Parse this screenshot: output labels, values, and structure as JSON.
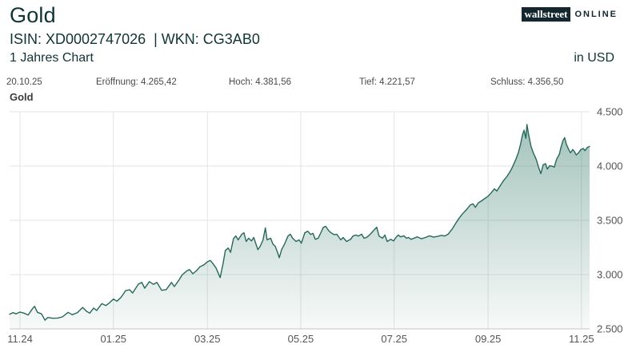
{
  "header": {
    "title": "Gold",
    "isin_wkn": "ISIN: XD0002747026  | WKN: CG3AB0",
    "period": "1 Jahres Chart",
    "currency": "in USD",
    "logo": {
      "part1": "wallstreet",
      "part2": "ONLINE"
    }
  },
  "stats": {
    "date": "20.10.25",
    "open": "Eröffnung: 4.265,42",
    "high": "Hoch: 4.381,56",
    "low": "Tief: 4.221,57",
    "close": "Schluss: 4.356,50"
  },
  "chart_label": "Gold",
  "colors": {
    "line": "#26685A",
    "fill": "#3F8070",
    "grid": "#e4e4e4",
    "axis": "#c6c6c6",
    "tick": "#555555",
    "text_dark": "#103433",
    "logo_bg": "#14262e"
  },
  "chart_data": {
    "type": "area",
    "title": "Gold",
    "xlabel": "",
    "ylabel": "",
    "legend": false,
    "grid": true,
    "ylim": [
      2500,
      4500
    ],
    "yticks": [
      {
        "value": 4500,
        "label": "4.500"
      },
      {
        "value": 4000,
        "label": "4.000"
      },
      {
        "value": 3500,
        "label": "3.500"
      },
      {
        "value": 3000,
        "label": "3.000"
      },
      {
        "value": 2500,
        "label": "2.500"
      }
    ],
    "xticks": [
      {
        "t": 0.018,
        "label": "11.24"
      },
      {
        "t": 0.179,
        "label": "01.25"
      },
      {
        "t": 0.341,
        "label": "03.25"
      },
      {
        "t": 0.502,
        "label": "05.25"
      },
      {
        "t": 0.663,
        "label": "07.25"
      },
      {
        "t": 0.825,
        "label": "09.25"
      },
      {
        "t": 0.986,
        "label": "11.25"
      }
    ],
    "series": [
      {
        "name": "Gold",
        "points": [
          [
            0.0,
            2635
          ],
          [
            0.006,
            2650
          ],
          [
            0.011,
            2638
          ],
          [
            0.018,
            2655
          ],
          [
            0.025,
            2645
          ],
          [
            0.032,
            2628
          ],
          [
            0.039,
            2682
          ],
          [
            0.043,
            2708
          ],
          [
            0.048,
            2652
          ],
          [
            0.055,
            2638
          ],
          [
            0.061,
            2580
          ],
          [
            0.066,
            2605
          ],
          [
            0.074,
            2598
          ],
          [
            0.083,
            2600
          ],
          [
            0.091,
            2610
          ],
          [
            0.101,
            2652
          ],
          [
            0.108,
            2630
          ],
          [
            0.117,
            2650
          ],
          [
            0.126,
            2698
          ],
          [
            0.132,
            2665
          ],
          [
            0.138,
            2645
          ],
          [
            0.145,
            2692
          ],
          [
            0.15,
            2670
          ],
          [
            0.159,
            2732
          ],
          [
            0.166,
            2715
          ],
          [
            0.172,
            2740
          ],
          [
            0.179,
            2775
          ],
          [
            0.185,
            2755
          ],
          [
            0.192,
            2790
          ],
          [
            0.2,
            2852
          ],
          [
            0.207,
            2860
          ],
          [
            0.212,
            2830
          ],
          [
            0.222,
            2912
          ],
          [
            0.228,
            2928
          ],
          [
            0.233,
            2875
          ],
          [
            0.241,
            2935
          ],
          [
            0.248,
            2910
          ],
          [
            0.254,
            2928
          ],
          [
            0.262,
            2855
          ],
          [
            0.27,
            2862
          ],
          [
            0.279,
            2928
          ],
          [
            0.284,
            2890
          ],
          [
            0.292,
            2950
          ],
          [
            0.298,
            3000
          ],
          [
            0.306,
            3035
          ],
          [
            0.31,
            3046
          ],
          [
            0.316,
            3008
          ],
          [
            0.323,
            3040
          ],
          [
            0.328,
            3072
          ],
          [
            0.335,
            3090
          ],
          [
            0.341,
            3118
          ],
          [
            0.346,
            3130
          ],
          [
            0.35,
            3105
          ],
          [
            0.356,
            3060
          ],
          [
            0.363,
            2972
          ],
          [
            0.368,
            3100
          ],
          [
            0.372,
            3222
          ],
          [
            0.377,
            3245
          ],
          [
            0.381,
            3205
          ],
          [
            0.386,
            3332
          ],
          [
            0.39,
            3356
          ],
          [
            0.394,
            3320
          ],
          [
            0.4,
            3370
          ],
          [
            0.404,
            3386
          ],
          [
            0.408,
            3305
          ],
          [
            0.412,
            3335
          ],
          [
            0.417,
            3310
          ],
          [
            0.421,
            3342
          ],
          [
            0.428,
            3230
          ],
          [
            0.432,
            3260
          ],
          [
            0.437,
            3320
          ],
          [
            0.441,
            3430
          ],
          [
            0.444,
            3320
          ],
          [
            0.45,
            3335
          ],
          [
            0.454,
            3280
          ],
          [
            0.458,
            3260
          ],
          [
            0.462,
            3205
          ],
          [
            0.465,
            3155
          ],
          [
            0.469,
            3230
          ],
          [
            0.474,
            3280
          ],
          [
            0.48,
            3355
          ],
          [
            0.484,
            3372
          ],
          [
            0.488,
            3335
          ],
          [
            0.494,
            3305
          ],
          [
            0.499,
            3320
          ],
          [
            0.503,
            3290
          ],
          [
            0.509,
            3385
          ],
          [
            0.514,
            3400
          ],
          [
            0.519,
            3370
          ],
          [
            0.523,
            3380
          ],
          [
            0.527,
            3325
          ],
          [
            0.532,
            3335
          ],
          [
            0.537,
            3390
          ],
          [
            0.541,
            3435
          ],
          [
            0.545,
            3445
          ],
          [
            0.55,
            3405
          ],
          [
            0.554,
            3385
          ],
          [
            0.56,
            3368
          ],
          [
            0.564,
            3372
          ],
          [
            0.571,
            3320
          ],
          [
            0.575,
            3342
          ],
          [
            0.581,
            3305
          ],
          [
            0.588,
            3325
          ],
          [
            0.592,
            3355
          ],
          [
            0.597,
            3365
          ],
          [
            0.601,
            3355
          ],
          [
            0.607,
            3372
          ],
          [
            0.611,
            3335
          ],
          [
            0.615,
            3342
          ],
          [
            0.619,
            3357
          ],
          [
            0.625,
            3390
          ],
          [
            0.629,
            3415
          ],
          [
            0.633,
            3437
          ],
          [
            0.637,
            3355
          ],
          [
            0.643,
            3335
          ],
          [
            0.647,
            3365
          ],
          [
            0.651,
            3305
          ],
          [
            0.657,
            3325
          ],
          [
            0.662,
            3310
          ],
          [
            0.666,
            3342
          ],
          [
            0.67,
            3365
          ],
          [
            0.674,
            3348
          ],
          [
            0.68,
            3357
          ],
          [
            0.684,
            3335
          ],
          [
            0.688,
            3342
          ],
          [
            0.692,
            3325
          ],
          [
            0.698,
            3337
          ],
          [
            0.703,
            3348
          ],
          [
            0.71,
            3330
          ],
          [
            0.717,
            3342
          ],
          [
            0.724,
            3357
          ],
          [
            0.731,
            3345
          ],
          [
            0.738,
            3352
          ],
          [
            0.745,
            3362
          ],
          [
            0.75,
            3355
          ],
          [
            0.756,
            3372
          ],
          [
            0.763,
            3420
          ],
          [
            0.77,
            3480
          ],
          [
            0.775,
            3520
          ],
          [
            0.781,
            3560
          ],
          [
            0.788,
            3600
          ],
          [
            0.794,
            3640
          ],
          [
            0.799,
            3652
          ],
          [
            0.803,
            3620
          ],
          [
            0.808,
            3660
          ],
          [
            0.814,
            3680
          ],
          [
            0.819,
            3700
          ],
          [
            0.825,
            3722
          ],
          [
            0.83,
            3752
          ],
          [
            0.836,
            3790
          ],
          [
            0.84,
            3770
          ],
          [
            0.846,
            3820
          ],
          [
            0.851,
            3862
          ],
          [
            0.857,
            3900
          ],
          [
            0.862,
            3942
          ],
          [
            0.866,
            3980
          ],
          [
            0.872,
            4050
          ],
          [
            0.877,
            4120
          ],
          [
            0.881,
            4200
          ],
          [
            0.884,
            4282
          ],
          [
            0.887,
            4330
          ],
          [
            0.89,
            4255
          ],
          [
            0.892,
            4382
          ],
          [
            0.895,
            4285
          ],
          [
            0.899,
            4180
          ],
          [
            0.903,
            4120
          ],
          [
            0.908,
            4062
          ],
          [
            0.912,
            3990
          ],
          [
            0.916,
            3930
          ],
          [
            0.92,
            4012
          ],
          [
            0.924,
            4022
          ],
          [
            0.927,
            3972
          ],
          [
            0.931,
            4002
          ],
          [
            0.935,
            4000
          ],
          [
            0.939,
            3990
          ],
          [
            0.943,
            4062
          ],
          [
            0.948,
            4110
          ],
          [
            0.95,
            4160
          ],
          [
            0.954,
            4232
          ],
          [
            0.957,
            4262
          ],
          [
            0.96,
            4200
          ],
          [
            0.964,
            4152
          ],
          [
            0.967,
            4122
          ],
          [
            0.971,
            4152
          ],
          [
            0.974,
            4132
          ],
          [
            0.977,
            4102
          ],
          [
            0.981,
            4122
          ],
          [
            0.985,
            4152
          ],
          [
            0.989,
            4162
          ],
          [
            0.992,
            4142
          ],
          [
            0.996,
            4172
          ],
          [
            1.0,
            4180
          ]
        ]
      }
    ]
  }
}
